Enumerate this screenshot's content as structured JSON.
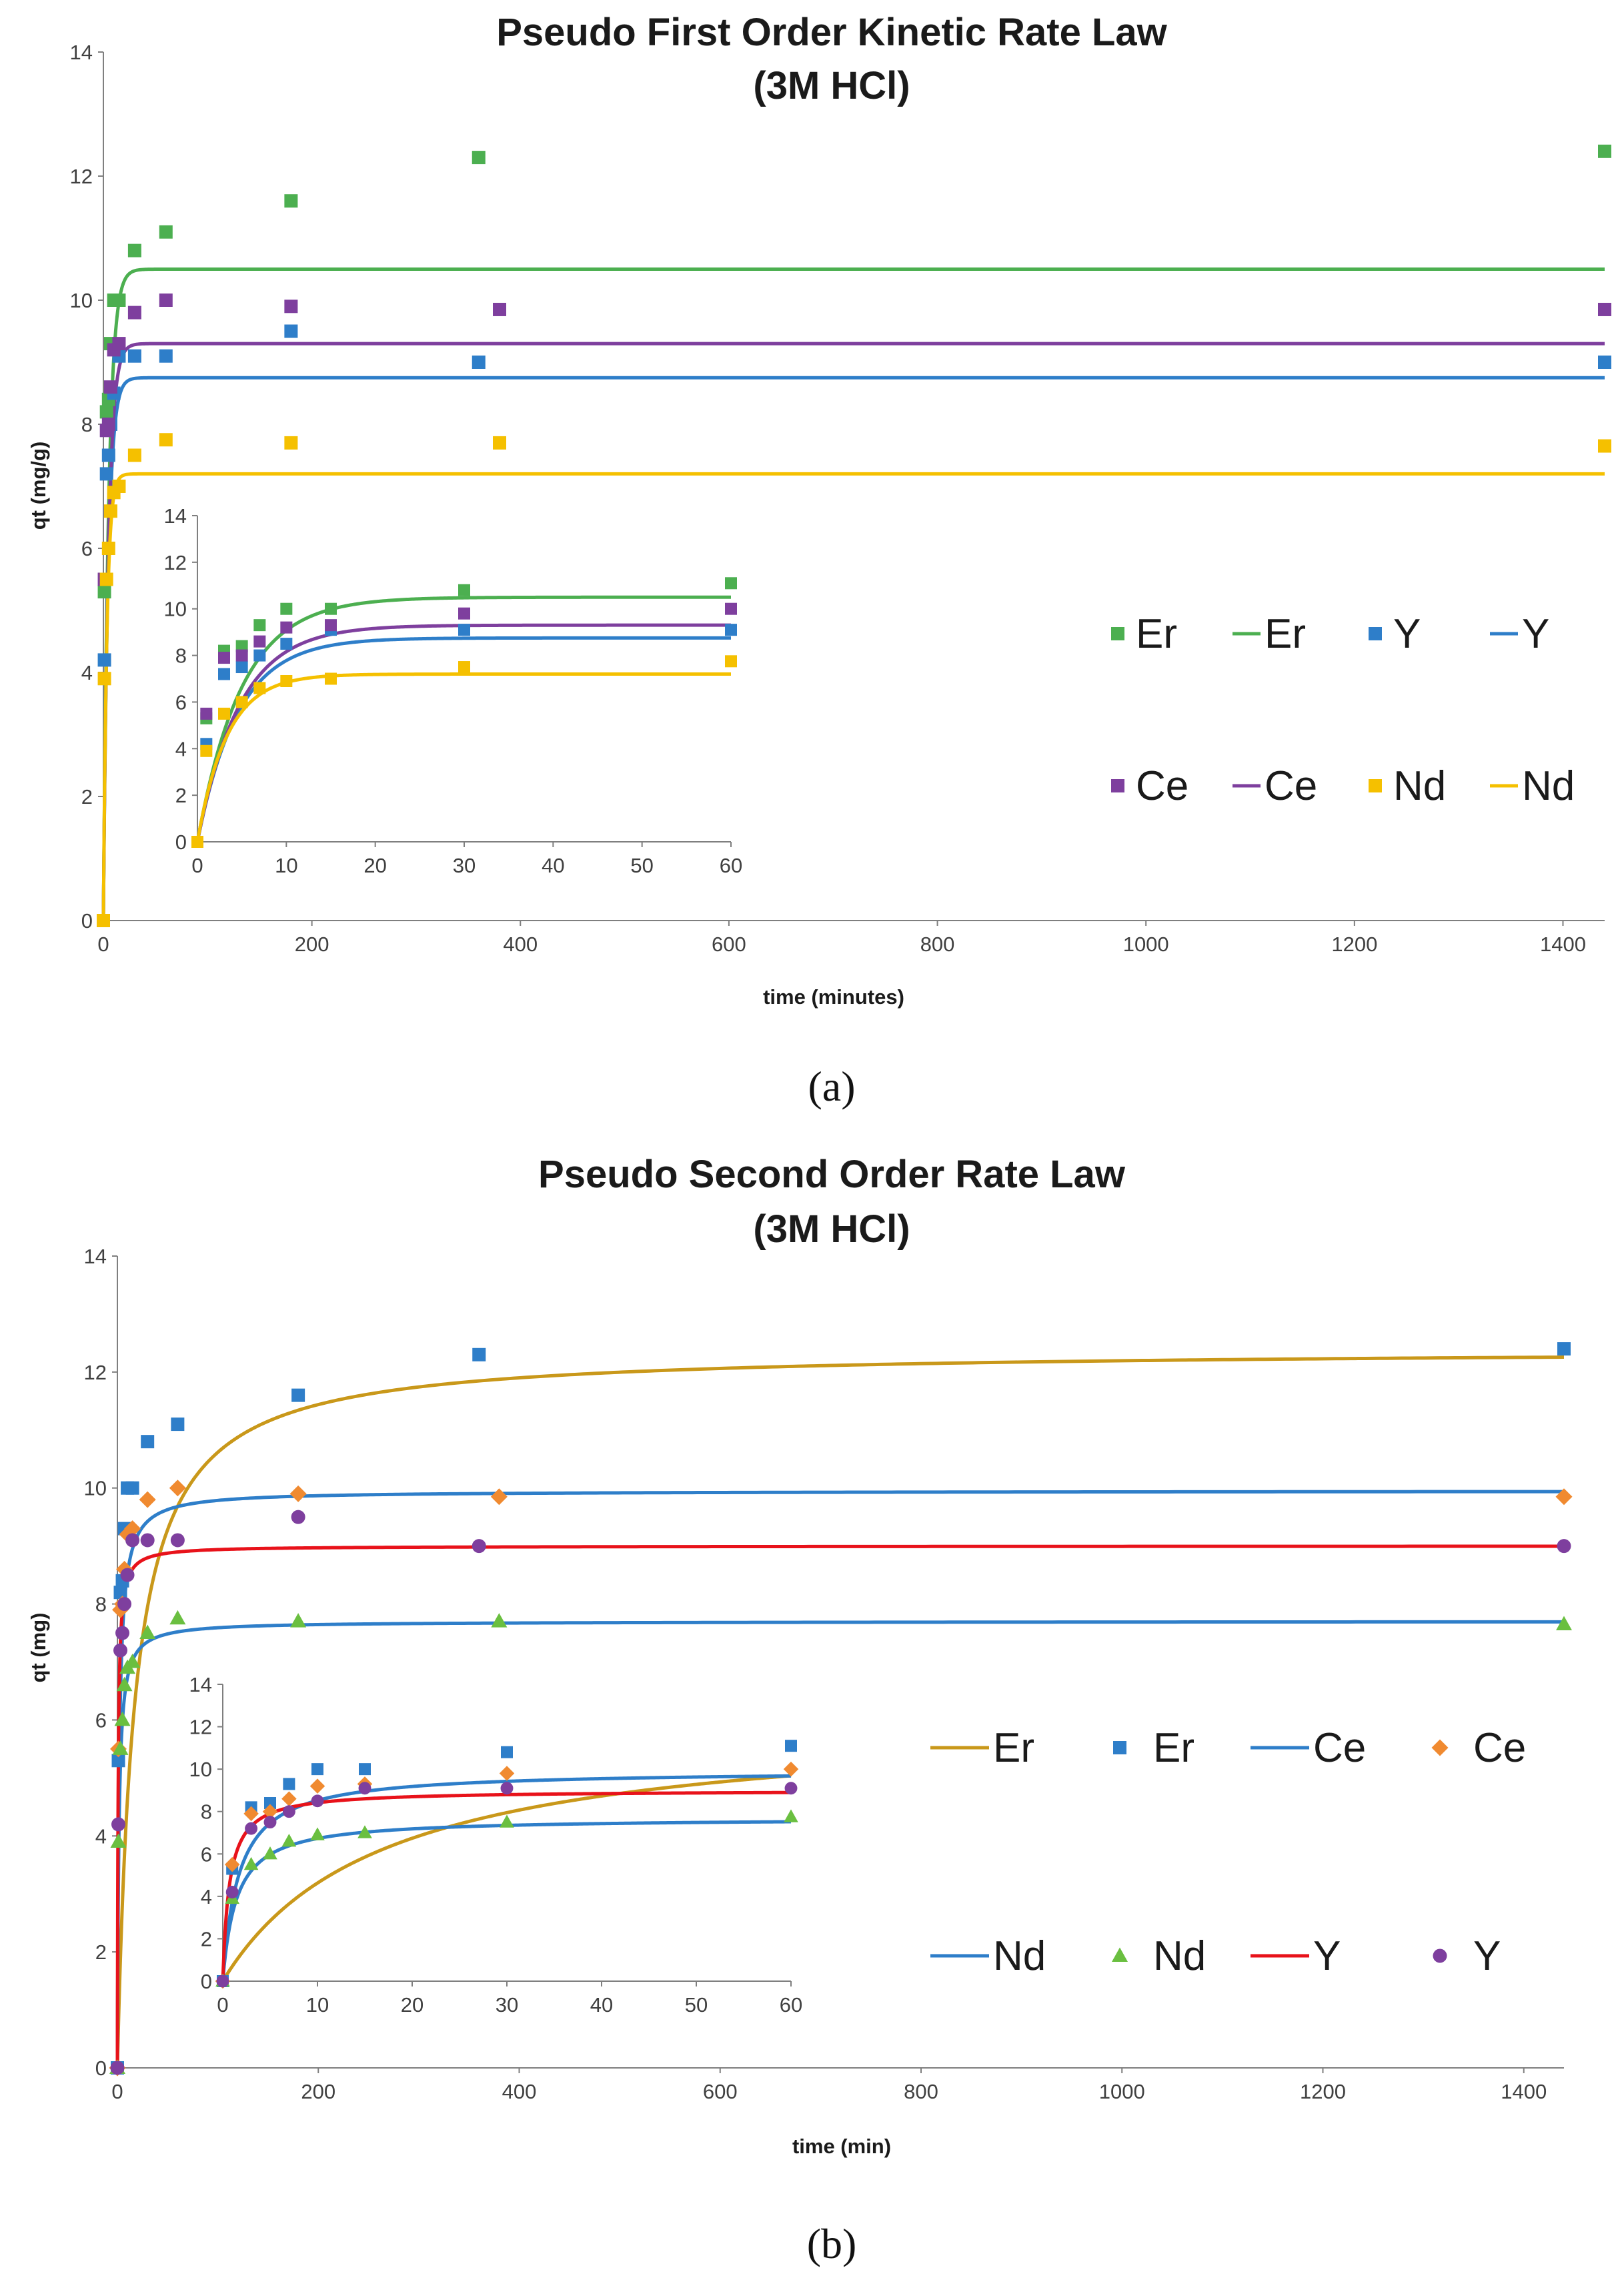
{
  "colors": {
    "green": "#4CAF50",
    "blue": "#2E7EC9",
    "purple": "#7E3F9E",
    "gold": "#F5C000",
    "ochre": "#C9981A",
    "orange": "#F08A30",
    "red": "#E8121A",
    "green_tri": "#6ABF40",
    "violet": "#7E3F9E",
    "axis": "#7f7f7f"
  },
  "chart_data": [
    {
      "type": "scatter",
      "panel_label": "(a)",
      "title": "Pseudo First Order Kinetic Rate Law",
      "subtitle": "(3M HCl)",
      "xlabel": "time (minutes)",
      "ylabel": "qt (mg/g)",
      "xlim": [
        0,
        1440
      ],
      "ylim": [
        0,
        14
      ],
      "xticks": [
        0,
        200,
        400,
        600,
        800,
        1000,
        1200,
        1400
      ],
      "yticks": [
        0,
        2,
        4,
        6,
        8,
        10,
        12,
        14
      ],
      "legend": [
        {
          "label": "Er",
          "kind": "marker",
          "marker": "square",
          "color": "#4CAF50"
        },
        {
          "label": "Er",
          "kind": "line",
          "color": "#4CAF50"
        },
        {
          "label": "Y",
          "kind": "marker",
          "marker": "square",
          "color": "#2E7EC9"
        },
        {
          "label": "Y",
          "kind": "line",
          "color": "#2E7EC9"
        },
        {
          "label": "Ce",
          "kind": "marker",
          "marker": "square",
          "color": "#7E3F9E"
        },
        {
          "label": "Ce",
          "kind": "line",
          "color": "#7E3F9E"
        },
        {
          "label": "Nd",
          "kind": "marker",
          "marker": "square",
          "color": "#F5C000"
        },
        {
          "label": "Nd",
          "kind": "line",
          "color": "#F5C000"
        }
      ],
      "series": [
        {
          "name": "Er",
          "kind": "points",
          "marker": "square",
          "color": "#4CAF50",
          "x": [
            0,
            1,
            3,
            5,
            7,
            10,
            15,
            30,
            60,
            180,
            360,
            1440
          ],
          "y": [
            0,
            5.3,
            8.2,
            8.4,
            9.3,
            10.0,
            10.0,
            10.8,
            11.1,
            11.6,
            12.3,
            12.4
          ]
        },
        {
          "name": "Er",
          "kind": "line",
          "color": "#4CAF50",
          "model": "pfo",
          "qe": 10.5,
          "k": 0.2
        },
        {
          "name": "Y",
          "kind": "points",
          "marker": "square",
          "color": "#2E7EC9",
          "x": [
            0,
            1,
            3,
            5,
            7,
            10,
            15,
            30,
            60,
            180,
            360,
            1440
          ],
          "y": [
            0,
            4.2,
            7.2,
            7.5,
            8.0,
            8.5,
            9.1,
            9.1,
            9.1,
            9.5,
            9.0,
            9.0
          ]
        },
        {
          "name": "Y",
          "kind": "line",
          "color": "#2E7EC9",
          "model": "pfo",
          "qe": 8.75,
          "k": 0.22
        },
        {
          "name": "Ce",
          "kind": "points",
          "marker": "square",
          "color": "#7E3F9E",
          "x": [
            0,
            1,
            3,
            5,
            7,
            10,
            15,
            30,
            60,
            180,
            380,
            1440
          ],
          "y": [
            0,
            5.5,
            7.9,
            8.0,
            8.6,
            9.2,
            9.3,
            9.8,
            10.0,
            9.9,
            9.85,
            9.85
          ]
        },
        {
          "name": "Ce",
          "kind": "line",
          "color": "#7E3F9E",
          "model": "pfo",
          "qe": 9.3,
          "k": 0.21
        },
        {
          "name": "Nd",
          "kind": "points",
          "marker": "square",
          "color": "#F5C000",
          "x": [
            0,
            1,
            3,
            5,
            7,
            10,
            15,
            30,
            60,
            180,
            380,
            1440
          ],
          "y": [
            0,
            3.9,
            5.5,
            6.0,
            6.6,
            6.9,
            7.0,
            7.5,
            7.75,
            7.7,
            7.7,
            7.65
          ]
        },
        {
          "name": "Nd",
          "kind": "line",
          "color": "#F5C000",
          "model": "pfo",
          "qe": 7.2,
          "k": 0.3
        }
      ],
      "inset": {
        "xlim": [
          0,
          60
        ],
        "ylim": [
          0,
          14
        ],
        "xticks": [
          0,
          10,
          20,
          30,
          40,
          50,
          60
        ],
        "yticks": [
          0,
          2,
          4,
          6,
          8,
          10,
          12,
          14
        ]
      }
    },
    {
      "type": "scatter",
      "panel_label": "(b)",
      "title": "Pseudo Second Order Rate Law",
      "subtitle": "(3M HCl)",
      "xlabel": "time (min)",
      "ylabel": "qt (mg)",
      "xlim": [
        0,
        1440
      ],
      "ylim": [
        0,
        14
      ],
      "xticks": [
        0,
        200,
        400,
        600,
        800,
        1000,
        1200,
        1400
      ],
      "yticks": [
        0,
        2,
        4,
        6,
        8,
        10,
        12,
        14
      ],
      "legend": [
        {
          "label": "Er",
          "kind": "line",
          "color": "#C9981A"
        },
        {
          "label": "Er",
          "kind": "marker",
          "marker": "square",
          "color": "#2E7EC9"
        },
        {
          "label": "Ce",
          "kind": "line",
          "color": "#2E7EC9"
        },
        {
          "label": "Ce",
          "kind": "marker",
          "marker": "diamond",
          "color": "#F08A30"
        },
        {
          "label": "Nd",
          "kind": "line",
          "color": "#2E7EC9"
        },
        {
          "label": "Nd",
          "kind": "marker",
          "marker": "triangle",
          "color": "#6ABF40"
        },
        {
          "label": "Y",
          "kind": "line",
          "color": "#E8121A"
        },
        {
          "label": "Y",
          "kind": "marker",
          "marker": "circle",
          "color": "#7E3F9E"
        }
      ],
      "series": [
        {
          "name": "Er",
          "kind": "line",
          "color": "#C9981A",
          "model": "pso",
          "qe": 12.4,
          "k": 0.0048
        },
        {
          "name": "Er",
          "kind": "points",
          "marker": "square",
          "color": "#2E7EC9",
          "x": [
            0,
            1,
            3,
            5,
            7,
            10,
            15,
            30,
            60,
            180,
            360,
            1440
          ],
          "y": [
            0,
            5.3,
            8.2,
            8.4,
            9.3,
            10.0,
            10.0,
            10.8,
            11.1,
            11.6,
            12.3,
            12.4
          ]
        },
        {
          "name": "Ce",
          "kind": "line",
          "color": "#2E7EC9",
          "model": "pso",
          "qe": 9.95,
          "k": 0.06
        },
        {
          "name": "Ce",
          "kind": "points",
          "marker": "diamond",
          "color": "#F08A30",
          "x": [
            0,
            1,
            3,
            5,
            7,
            10,
            15,
            30,
            60,
            180,
            380,
            1440
          ],
          "y": [
            0,
            5.5,
            7.9,
            8.0,
            8.6,
            9.2,
            9.3,
            9.8,
            10.0,
            9.9,
            9.85,
            9.85
          ]
        },
        {
          "name": "Nd",
          "kind": "line",
          "color": "#2E7EC9",
          "model": "pso",
          "qe": 7.7,
          "k": 0.09
        },
        {
          "name": "Nd",
          "kind": "points",
          "marker": "triangle",
          "color": "#6ABF40",
          "x": [
            0,
            1,
            3,
            5,
            7,
            10,
            15,
            30,
            60,
            180,
            380,
            1440
          ],
          "y": [
            0,
            3.9,
            5.5,
            6.0,
            6.6,
            6.9,
            7.0,
            7.5,
            7.75,
            7.7,
            7.7,
            7.65
          ]
        },
        {
          "name": "Y",
          "kind": "line",
          "color": "#E8121A",
          "model": "pso",
          "qe": 9.0,
          "k": 0.16
        },
        {
          "name": "Y",
          "kind": "points",
          "marker": "circle",
          "color": "#7E3F9E",
          "x": [
            0,
            1,
            3,
            5,
            7,
            10,
            15,
            30,
            60,
            180,
            360,
            1440
          ],
          "y": [
            0,
            4.2,
            7.2,
            7.5,
            8.0,
            8.5,
            9.1,
            9.1,
            9.1,
            9.5,
            9.0,
            9.0
          ]
        }
      ],
      "inset": {
        "xlim": [
          0,
          60
        ],
        "ylim": [
          0,
          14
        ],
        "xticks": [
          0,
          10,
          20,
          30,
          40,
          50,
          60
        ],
        "yticks": [
          0,
          2,
          4,
          6,
          8,
          10,
          12,
          14
        ]
      }
    }
  ]
}
